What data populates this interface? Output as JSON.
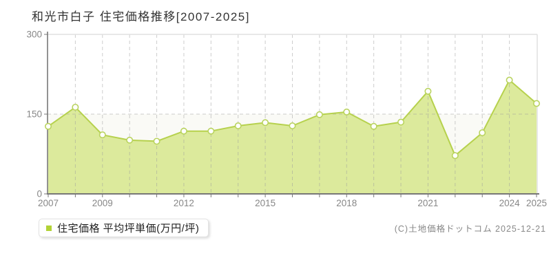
{
  "title": "和光市白子 住宅価格推移[2007-2025]",
  "legend": {
    "label": "住宅価格 平均坪単価(万円/坪)"
  },
  "copyright": "(C)土地価格ドットコム 2025-12-21",
  "chart_data": {
    "type": "area",
    "title": "和光市白子 住宅価格推移[2007-2025]",
    "xlabel": "",
    "ylabel": "平均坪単価(万円/坪)",
    "categories": [
      "2007",
      "2008",
      "2009",
      "2010",
      "2011",
      "2012",
      "2013",
      "2014",
      "2015",
      "2016",
      "2017",
      "2018",
      "2019",
      "2020",
      "2021",
      "2022",
      "2023",
      "2024",
      "2025"
    ],
    "values": [
      127,
      163,
      111,
      101,
      99,
      118,
      118,
      128,
      134,
      128,
      149,
      154,
      127,
      135,
      193,
      72,
      115,
      214,
      170
    ],
    "series_name": "住宅価格 平均坪単価(万円/坪)",
    "ylim": [
      0,
      300
    ],
    "yticks": [
      0,
      150,
      300
    ],
    "x_tick_labels_shown": [
      "2007",
      "2009",
      "2012",
      "2015",
      "2018",
      "2021",
      "2024",
      "2025"
    ],
    "grid": "vertical dashed per year, horizontal dashed at 150, solid top and right border",
    "legend_position": "bottom-left",
    "marker": "circle-white-fill",
    "colors": {
      "area": "#dcea9c",
      "line": "#b6d14d",
      "marker_fill": "#ffffff",
      "marker_stroke": "#b9d35e",
      "grid": "#9c9c9c",
      "border": "#e1e1e1",
      "axis": "#777777",
      "tick_label": "#878787",
      "title": "#333333",
      "band": "#fafaf6",
      "legend_marker": "#b2d235"
    }
  }
}
